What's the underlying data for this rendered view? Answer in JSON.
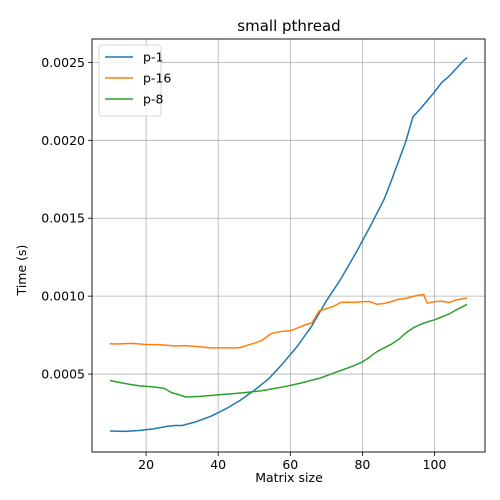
{
  "chart_data": {
    "type": "line",
    "title": "small pthread",
    "xlabel": "Matrix size",
    "ylabel": "Time (s)",
    "xlim": [
      5,
      114
    ],
    "ylim": [
      0.0,
      0.00265
    ],
    "xticks": [
      20,
      40,
      60,
      80,
      100
    ],
    "yticks": [
      0.0005,
      0.001,
      0.0015,
      0.002,
      0.0025
    ],
    "ytick_labels": [
      "0.0005",
      "0.0010",
      "0.0015",
      "0.0020",
      "0.0025"
    ],
    "grid": true,
    "legend_position": "top-left",
    "series": [
      {
        "name": "p-1",
        "color": "#1f77b4",
        "x": [
          10,
          14,
          18,
          22,
          26,
          28,
          30,
          34,
          38,
          42,
          46,
          50,
          54,
          58,
          62,
          66,
          70,
          74,
          78,
          82,
          86,
          88,
          92,
          94,
          96,
          100,
          102,
          104,
          106,
          108,
          109
        ],
        "y": [
          0.000135,
          0.000132,
          0.000138,
          0.000148,
          0.000165,
          0.00017,
          0.00017,
          0.000195,
          0.00023,
          0.000275,
          0.00033,
          0.000395,
          0.00047,
          0.00057,
          0.00068,
          0.00081,
          0.00097,
          0.00111,
          0.00127,
          0.00144,
          0.00162,
          0.00174,
          0.00199,
          0.00215,
          0.0022,
          0.00231,
          0.00237,
          0.00241,
          0.00246,
          0.00251,
          0.00253
        ]
      },
      {
        "name": "p-16",
        "color": "#ff7f0e",
        "x": [
          10,
          12,
          16,
          20,
          24,
          28,
          31,
          34,
          38,
          42,
          44,
          46,
          50,
          52,
          54,
          55,
          58,
          60,
          62,
          64,
          66,
          68,
          70,
          72,
          74,
          76,
          78,
          80,
          82,
          84,
          86,
          88,
          90,
          92,
          94,
          96,
          97,
          98,
          100,
          102,
          104,
          106,
          109
        ],
        "y": [
          0.000695,
          0.000693,
          0.000697,
          0.00069,
          0.000688,
          0.00068,
          0.000683,
          0.000677,
          0.000668,
          0.000668,
          0.000667,
          0.00067,
          0.000698,
          0.000715,
          0.000748,
          0.000762,
          0.000775,
          0.000778,
          0.000795,
          0.000815,
          0.000828,
          0.000905,
          0.00092,
          0.000935,
          0.00096,
          0.000962,
          0.00096,
          0.000965,
          0.000965,
          0.000948,
          0.000953,
          0.000965,
          0.00098,
          0.000985,
          0.000998,
          0.001008,
          0.00101,
          0.000955,
          0.000965,
          0.000967,
          0.00096,
          0.000975,
          0.000988
        ]
      },
      {
        "name": "p-8",
        "color": "#2ca02c",
        "x": [
          10,
          14,
          18,
          22,
          25,
          27,
          29,
          31,
          35,
          39,
          43,
          47,
          51,
          55,
          59,
          63,
          65,
          68,
          71,
          74,
          77,
          80,
          82,
          84,
          86,
          88,
          90,
          92,
          94,
          96,
          98,
          100,
          102,
          104,
          106,
          109
        ],
        "y": [
          0.000458,
          0.00044,
          0.000425,
          0.000418,
          0.000408,
          0.000382,
          0.000368,
          0.000353,
          0.000357,
          0.000365,
          0.000372,
          0.00038,
          0.00039,
          0.000405,
          0.000422,
          0.000443,
          0.000455,
          0.000472,
          0.000498,
          0.000523,
          0.000548,
          0.000578,
          0.000608,
          0.000643,
          0.000668,
          0.000692,
          0.000722,
          0.000763,
          0.000795,
          0.000818,
          0.000835,
          0.000848,
          0.000866,
          0.000885,
          0.000912,
          0.000948
        ]
      }
    ]
  }
}
